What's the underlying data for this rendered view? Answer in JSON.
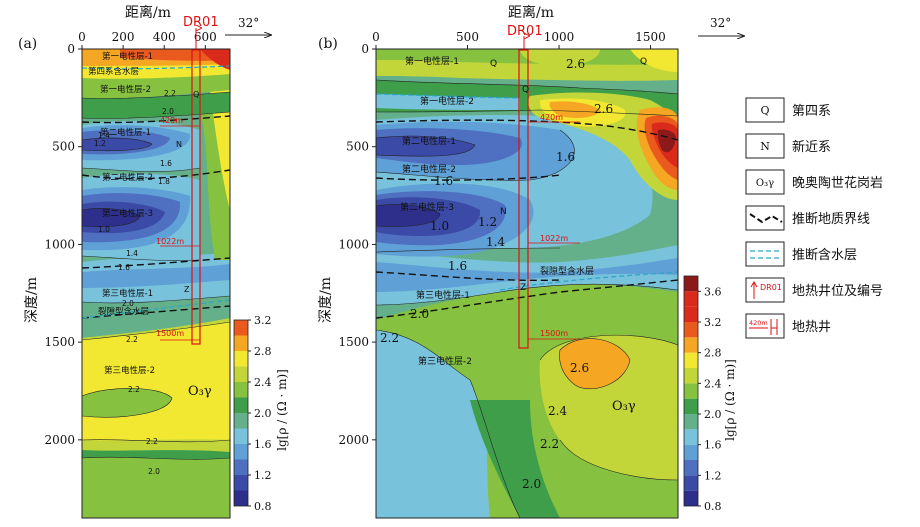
{
  "chart_data": [
    {
      "type": "heatmap",
      "panel_label": "(a)",
      "xlabel": "距离/m",
      "ylabel": "深度/m",
      "x_ticks": [
        0,
        200,
        400,
        600
      ],
      "y_ticks": [
        0,
        500,
        1000,
        1500,
        2000
      ],
      "xlim": [
        0,
        720
      ],
      "ylim": [
        0,
        2400
      ],
      "orientation_label": "32°",
      "well_label": "DR01",
      "well_x": 600,
      "well_depth_marks": [
        "420m",
        "1022m",
        "1500m"
      ],
      "layer_labels": [
        "第一电性层-1",
        "第四系含水层",
        "第一电性层-2",
        "第二电性层-1",
        "第二电性层-2",
        "第二电性层-3",
        "第三电性层-1",
        "裂隙型含水层",
        "第三电性层-2"
      ],
      "strata_letters": [
        "Q",
        "N",
        "Z"
      ],
      "contour_labels": [
        "2.2",
        "2.0",
        "1.4",
        "1.2",
        "1.6",
        "1.8",
        "1.0",
        "1.6",
        "1.4",
        "2.0",
        "2.2",
        "2.2",
        "2.2",
        "2.0"
      ],
      "rock_label": "O₃γ",
      "colorbar": {
        "label": "lg[ρ / (Ω · m)]",
        "ticks": [
          0.8,
          1.2,
          1.6,
          2.0,
          2.4,
          2.8,
          3.2
        ],
        "range": [
          0.8,
          3.2
        ]
      }
    },
    {
      "type": "heatmap",
      "panel_label": "(b)",
      "xlabel": "距离/m",
      "ylabel": "深度/m",
      "x_ticks": [
        0,
        500,
        1000,
        1500
      ],
      "y_ticks": [
        0,
        500,
        1000,
        1500,
        2000
      ],
      "xlim": [
        0,
        1650
      ],
      "ylim": [
        0,
        2400
      ],
      "orientation_label": "32°",
      "well_label": "DR01",
      "well_x": 800,
      "well_depth_marks": [
        "420m",
        "1022m",
        "1500m"
      ],
      "layer_labels": [
        "第一电性层-1",
        "第一电性层-2",
        "第二电性层-1",
        "第二电性层-2",
        "第二电性层-3",
        "裂隙型含水层",
        "第三电性层-1",
        "第三电性层-2"
      ],
      "strata_letters": [
        "Q",
        "Q",
        "Q",
        "N",
        "Z"
      ],
      "contour_labels": [
        "2.6",
        "2.6",
        "1.6",
        "1.6",
        "1.0",
        "1.2",
        "1.4",
        "1.6",
        "2.0",
        "2.2",
        "2.6",
        "2.4",
        "2.2",
        "2.0"
      ],
      "rock_label": "O₃γ",
      "colorbar": {
        "label": "lg[ρ / (Ω · m)]",
        "ticks": [
          0.8,
          1.2,
          1.6,
          2.0,
          2.4,
          2.8,
          3.2,
          3.6
        ],
        "range": [
          0.8,
          3.8
        ]
      }
    }
  ],
  "colors": {
    "c08": "#2e2f8a",
    "c10": "#3b4aa6",
    "c12": "#4f6fc0",
    "c14": "#5fa0d6",
    "c16": "#79c2dc",
    "c18": "#63b08a",
    "c20": "#3f9e4a",
    "c22": "#86c240",
    "c24": "#c2d63a",
    "c26": "#f2e832",
    "c28": "#f5a623",
    "c30": "#ea5a1e",
    "c32": "#d92a1c",
    "c36": "#8c1a1a"
  },
  "legend": {
    "items": [
      {
        "symbol": "Q",
        "label": "第四系"
      },
      {
        "symbol": "N",
        "label": "新近系"
      },
      {
        "symbol": "O₃γ",
        "label": "晚奥陶世花岗岩"
      },
      {
        "symbol": "",
        "label": "推断地质界线"
      },
      {
        "symbol": "",
        "label": "推断含水层"
      },
      {
        "symbol": "DR01",
        "label": "地热井位及编号"
      },
      {
        "symbol": "420m",
        "label": "地热井"
      }
    ]
  }
}
